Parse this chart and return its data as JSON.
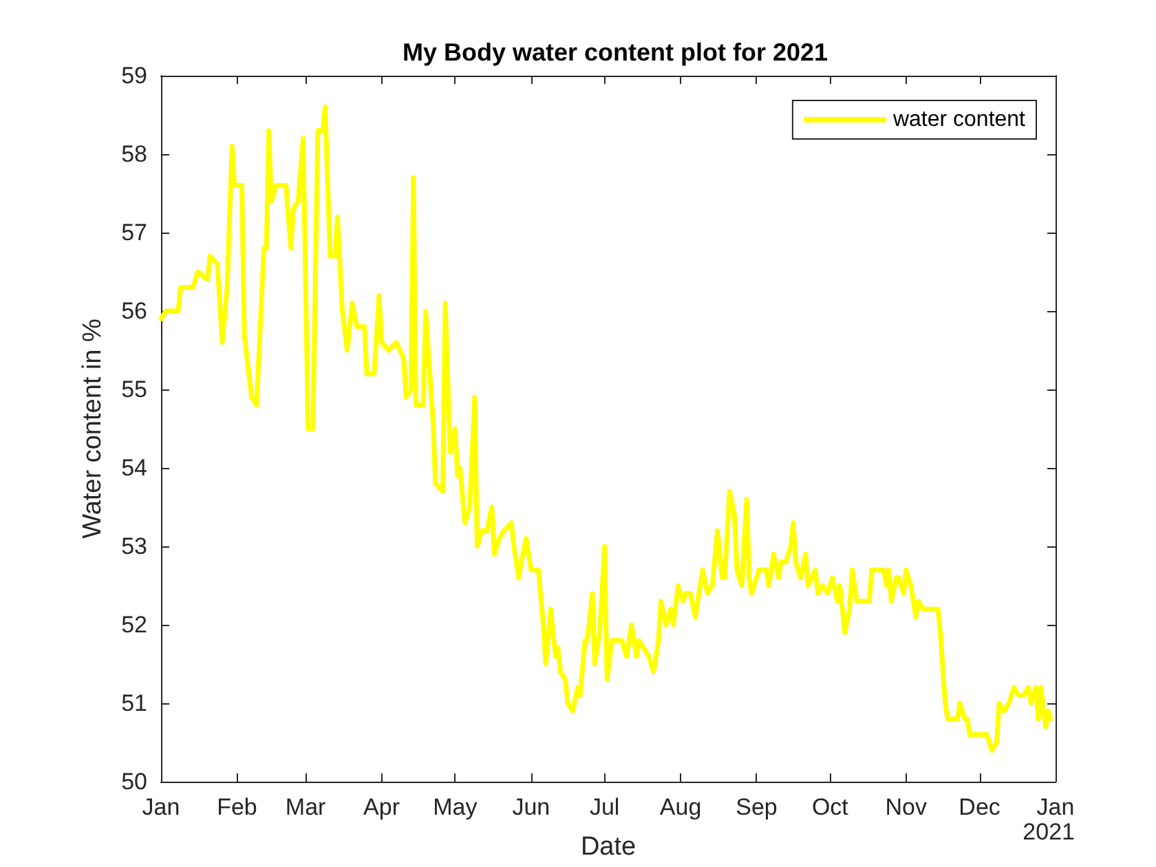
{
  "chart_data": {
    "type": "line",
    "title": "My Body water content plot for 2021",
    "xlabel": "Date",
    "ylabel": "Water content in %",
    "annotations": [
      "2021"
    ],
    "xlim": [
      "2021-01-01",
      "2022-01-01"
    ],
    "xticks": [
      {
        "value": "2021-01-01",
        "label": "Jan"
      },
      {
        "value": "2021-02-01",
        "label": "Feb"
      },
      {
        "value": "2021-03-01",
        "label": "Mar"
      },
      {
        "value": "2021-04-01",
        "label": "Apr"
      },
      {
        "value": "2021-05-01",
        "label": "May"
      },
      {
        "value": "2021-06-01",
        "label": "Jun"
      },
      {
        "value": "2021-07-01",
        "label": "Jul"
      },
      {
        "value": "2021-08-01",
        "label": "Aug"
      },
      {
        "value": "2021-09-01",
        "label": "Sep"
      },
      {
        "value": "2021-10-01",
        "label": "Oct"
      },
      {
        "value": "2021-11-01",
        "label": "Nov"
      },
      {
        "value": "2021-12-01",
        "label": "Dec"
      },
      {
        "value": "2022-01-01",
        "label": "Jan"
      }
    ],
    "ylim": [
      50,
      59
    ],
    "yticks": [
      50,
      51,
      52,
      53,
      54,
      55,
      56,
      57,
      58,
      59
    ],
    "grid": false,
    "legend": "top right",
    "marker": "none",
    "line_style": "solid",
    "x": [
      "2021-01-01",
      "2021-01-03",
      "2021-01-08",
      "2021-01-09",
      "2021-01-14",
      "2021-01-16",
      "2021-01-20",
      "2021-01-21",
      "2021-01-24",
      "2021-01-26",
      "2021-01-28",
      "2021-01-30",
      "2021-01-31",
      "2021-02-03",
      "2021-02-04",
      "2021-02-07",
      "2021-02-09",
      "2021-02-12",
      "2021-02-13",
      "2021-02-14",
      "2021-02-15",
      "2021-02-17",
      "2021-02-21",
      "2021-02-23",
      "2021-02-24",
      "2021-02-26",
      "2021-02-28",
      "2021-03-02",
      "2021-03-04",
      "2021-03-06",
      "2021-03-08",
      "2021-03-09",
      "2021-03-11",
      "2021-03-13",
      "2021-03-14",
      "2021-03-16",
      "2021-03-18",
      "2021-03-20",
      "2021-03-22",
      "2021-03-25",
      "2021-03-26",
      "2021-03-29",
      "2021-03-31",
      "2021-04-01",
      "2021-04-04",
      "2021-04-07",
      "2021-04-10",
      "2021-04-11",
      "2021-04-13",
      "2021-04-14",
      "2021-04-15",
      "2021-04-18",
      "2021-04-19",
      "2021-04-22",
      "2021-04-23",
      "2021-04-26",
      "2021-04-27",
      "2021-04-29",
      "2021-05-01",
      "2021-05-02",
      "2021-05-03",
      "2021-05-05",
      "2021-05-07",
      "2021-05-09",
      "2021-05-10",
      "2021-05-12",
      "2021-05-14",
      "2021-05-16",
      "2021-05-17",
      "2021-05-19",
      "2021-05-21",
      "2021-05-24",
      "2021-05-25",
      "2021-05-27",
      "2021-05-28",
      "2021-05-30",
      "2021-06-01",
      "2021-06-04",
      "2021-06-06",
      "2021-06-07",
      "2021-06-09",
      "2021-06-11",
      "2021-06-12",
      "2021-06-13",
      "2021-06-15",
      "2021-06-16",
      "2021-06-18",
      "2021-06-20",
      "2021-06-21",
      "2021-06-23",
      "2021-06-24",
      "2021-06-26",
      "2021-06-27",
      "2021-06-29",
      "2021-07-01",
      "2021-07-02",
      "2021-07-04",
      "2021-07-06",
      "2021-07-08",
      "2021-07-10",
      "2021-07-12",
      "2021-07-14",
      "2021-07-15",
      "2021-07-17",
      "2021-07-19",
      "2021-07-21",
      "2021-07-23",
      "2021-07-24",
      "2021-07-26",
      "2021-07-28",
      "2021-07-29",
      "2021-07-31",
      "2021-08-02",
      "2021-08-03",
      "2021-08-05",
      "2021-08-07",
      "2021-08-09",
      "2021-08-10",
      "2021-08-12",
      "2021-08-14",
      "2021-08-16",
      "2021-08-18",
      "2021-08-19",
      "2021-08-21",
      "2021-08-23",
      "2021-08-24",
      "2021-08-26",
      "2021-08-28",
      "2021-08-29",
      "2021-08-30",
      "2021-09-02",
      "2021-09-05",
      "2021-09-06",
      "2021-09-08",
      "2021-09-10",
      "2021-09-11",
      "2021-09-13",
      "2021-09-15",
      "2021-09-16",
      "2021-09-17",
      "2021-09-19",
      "2021-09-21",
      "2021-09-22",
      "2021-09-25",
      "2021-09-26",
      "2021-09-28",
      "2021-09-30",
      "2021-10-02",
      "2021-10-04",
      "2021-10-05",
      "2021-10-07",
      "2021-10-09",
      "2021-10-10",
      "2021-10-12",
      "2021-10-17",
      "2021-10-18",
      "2021-10-23",
      "2021-10-24",
      "2021-10-25",
      "2021-10-26",
      "2021-10-28",
      "2021-10-29",
      "2021-10-31",
      "2021-11-01",
      "2021-11-03",
      "2021-11-05",
      "2021-11-06",
      "2021-11-08",
      "2021-11-14",
      "2021-11-15",
      "2021-11-17",
      "2021-11-18",
      "2021-11-22",
      "2021-11-23",
      "2021-11-25",
      "2021-11-26",
      "2021-11-27",
      "2021-12-04",
      "2021-12-06",
      "2021-12-08",
      "2021-12-09",
      "2021-12-11",
      "2021-12-13",
      "2021-12-15",
      "2021-12-17",
      "2021-12-19",
      "2021-12-21",
      "2021-12-22",
      "2021-12-24",
      "2021-12-25",
      "2021-12-26",
      "2021-12-28",
      "2021-12-29",
      "2021-12-30"
    ],
    "series": [
      {
        "name": "water content",
        "color": "#ffff00",
        "values": [
          55.9,
          56.0,
          56.0,
          56.3,
          56.3,
          56.5,
          56.4,
          56.7,
          56.6,
          55.6,
          56.3,
          58.1,
          57.6,
          57.6,
          55.7,
          54.9,
          54.8,
          56.8,
          56.8,
          58.3,
          57.4,
          57.6,
          57.6,
          56.8,
          57.3,
          57.4,
          58.2,
          54.5,
          54.5,
          58.3,
          58.3,
          58.6,
          56.7,
          56.7,
          57.2,
          56.0,
          55.5,
          56.1,
          55.8,
          55.8,
          55.2,
          55.2,
          56.2,
          55.6,
          55.5,
          55.6,
          55.4,
          54.9,
          55.0,
          57.7,
          54.8,
          54.8,
          56.0,
          54.6,
          53.8,
          53.7,
          56.1,
          54.2,
          54.5,
          53.9,
          54.0,
          53.3,
          53.5,
          54.9,
          53.0,
          53.2,
          53.2,
          53.5,
          52.9,
          53.1,
          53.2,
          53.3,
          53.0,
          52.6,
          52.8,
          53.1,
          52.7,
          52.7,
          52.0,
          51.5,
          52.2,
          51.6,
          51.7,
          51.4,
          51.3,
          51.0,
          50.9,
          51.2,
          51.1,
          51.8,
          51.8,
          52.4,
          51.5,
          51.9,
          53.0,
          51.3,
          51.8,
          51.8,
          51.8,
          51.6,
          52.0,
          51.6,
          51.8,
          51.7,
          51.6,
          51.4,
          51.8,
          52.3,
          52.0,
          52.2,
          52.0,
          52.5,
          52.3,
          52.4,
          52.4,
          52.1,
          52.5,
          52.7,
          52.4,
          52.5,
          53.2,
          52.6,
          52.6,
          53.7,
          53.4,
          52.7,
          52.5,
          53.6,
          52.6,
          52.4,
          52.7,
          52.7,
          52.5,
          52.9,
          52.6,
          52.8,
          52.8,
          53.0,
          53.3,
          52.8,
          52.6,
          52.9,
          52.5,
          52.7,
          52.4,
          52.5,
          52.4,
          52.6,
          52.3,
          52.5,
          51.9,
          52.2,
          52.7,
          52.3,
          52.3,
          52.7,
          52.7,
          52.5,
          52.7,
          52.3,
          52.6,
          52.6,
          52.4,
          52.7,
          52.5,
          52.1,
          52.3,
          52.2,
          52.2,
          51.9,
          51.0,
          50.8,
          50.8,
          51.0,
          50.8,
          50.8,
          50.6,
          50.6,
          50.4,
          50.5,
          51.0,
          50.9,
          51.0,
          51.2,
          51.1,
          51.1,
          51.2,
          51.0,
          51.2,
          50.8,
          51.2,
          50.7,
          50.9,
          50.8
        ]
      }
    ]
  }
}
